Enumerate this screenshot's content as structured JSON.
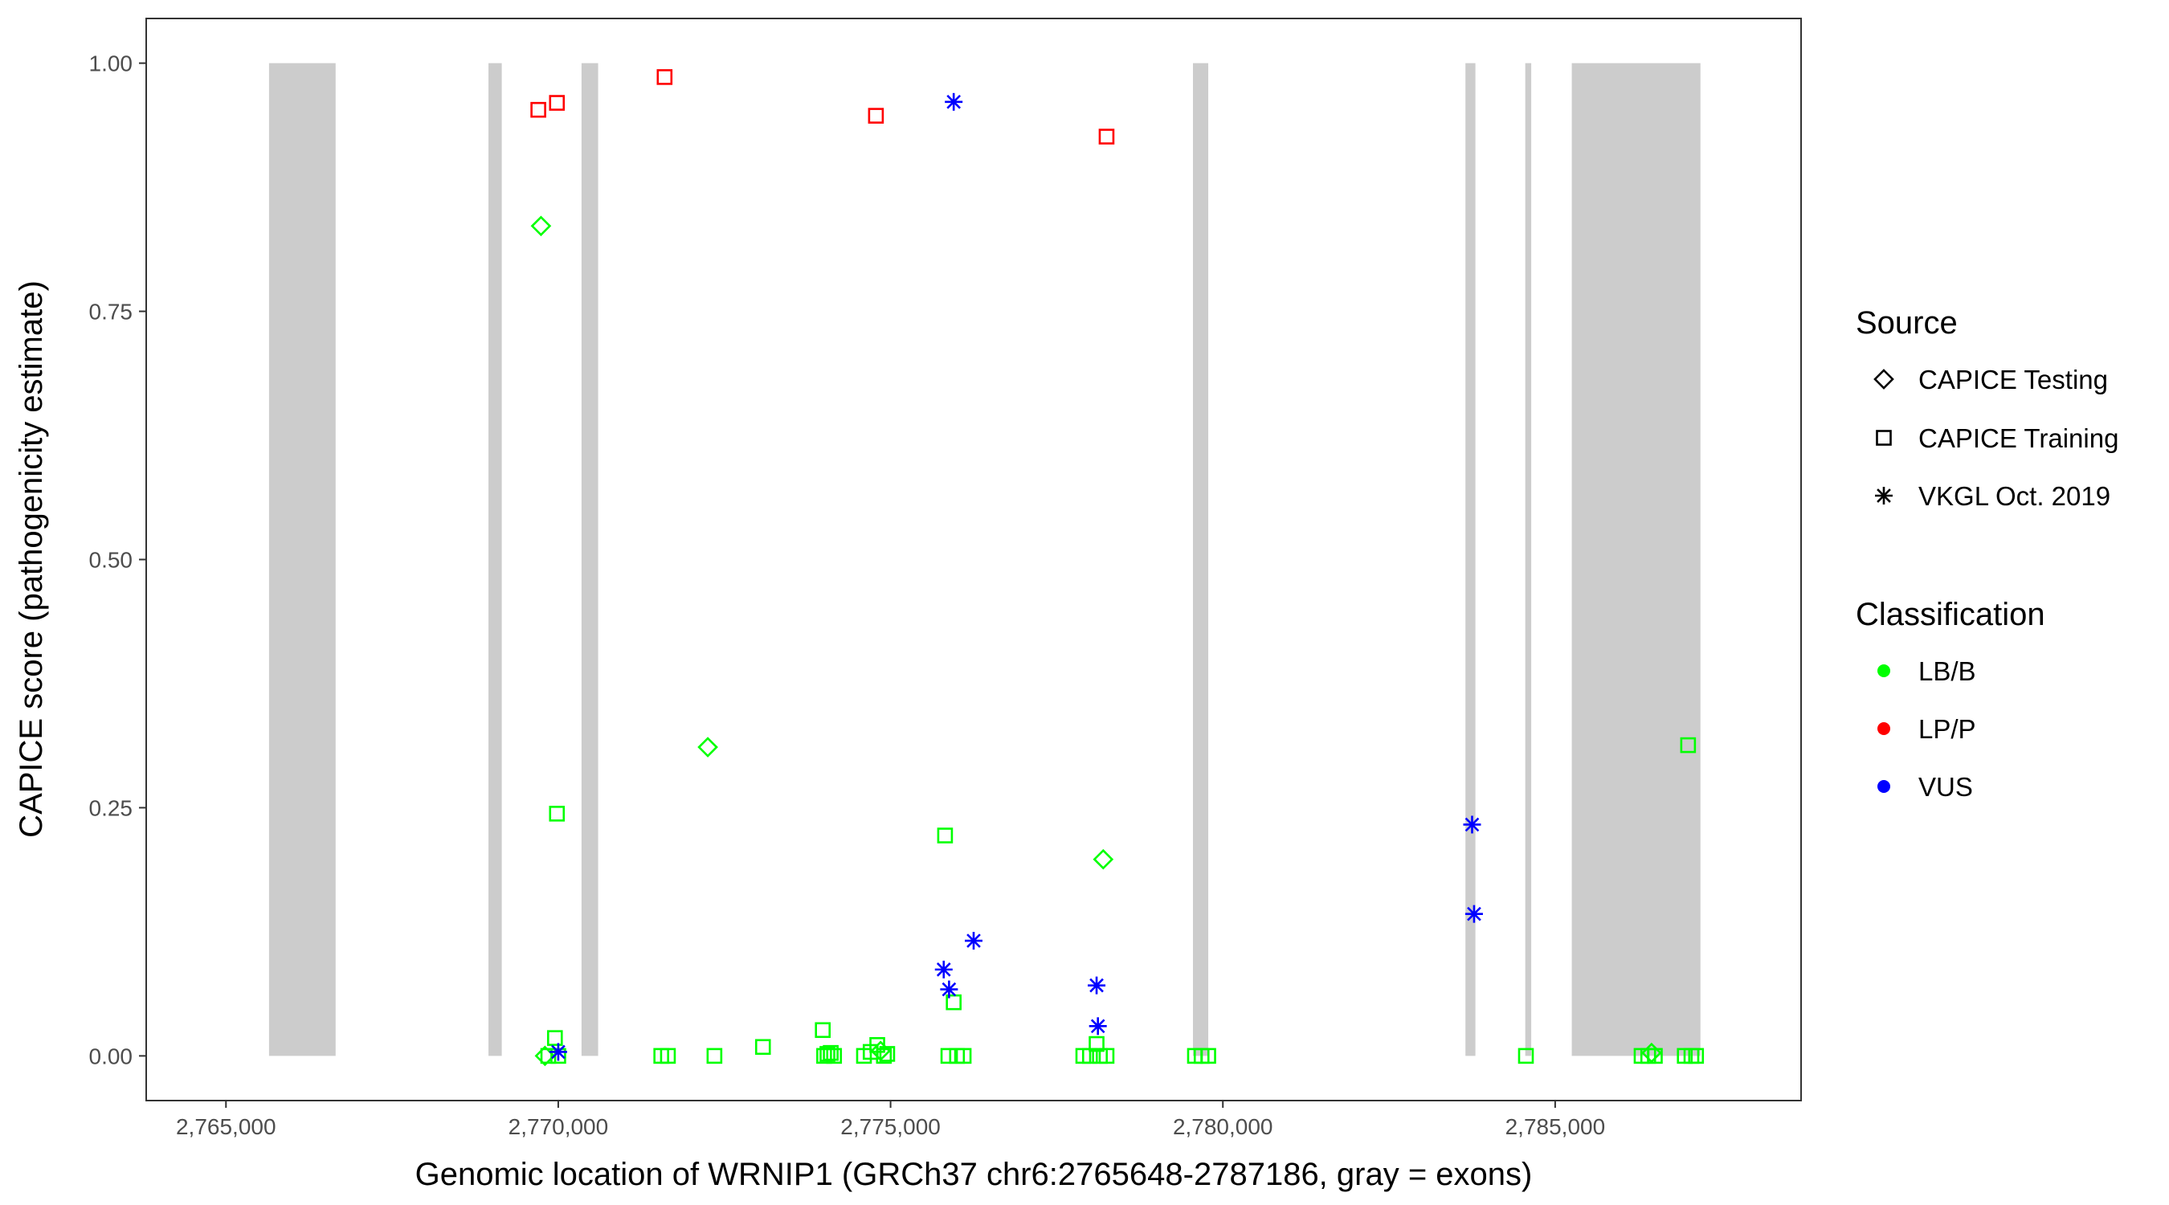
{
  "chart_data": {
    "type": "scatter",
    "title": "",
    "xlabel": "Genomic location of WRNIP1 (GRCh37 chr6:2765648-2787186, gray = exons)",
    "ylabel": "CAPICE score (pathogenicity estimate)",
    "xlim": [
      2763800,
      2788700
    ],
    "ylim": [
      -0.045,
      1.045
    ],
    "x_ticks": [
      2765000,
      2770000,
      2775000,
      2780000,
      2785000
    ],
    "x_tick_labels": [
      "2,765,000",
      "2,770,000",
      "2,775,000",
      "2,780,000",
      "2,785,000"
    ],
    "y_ticks": [
      0,
      0.25,
      0.5,
      0.75,
      1.0
    ],
    "y_tick_labels": [
      "0.00",
      "0.25",
      "0.50",
      "0.75",
      "1.00"
    ],
    "grid": false,
    "exons": [
      [
        2765648,
        2766650
      ],
      [
        2768950,
        2769150
      ],
      [
        2770350,
        2770600
      ],
      [
        2779550,
        2779780
      ],
      [
        2783650,
        2783800
      ],
      [
        2784550,
        2784640
      ],
      [
        2785250,
        2787186
      ]
    ],
    "exon_color": "#cccccc",
    "colors": {
      "LB/B": "#00ff00",
      "LP/P": "#ff0000",
      "VUS": "#0000ff"
    },
    "legend": {
      "position": "right",
      "shape_title": "Source",
      "shape_entries": [
        {
          "label": "CAPICE Testing",
          "shape": "diamond"
        },
        {
          "label": "CAPICE Training",
          "shape": "square"
        },
        {
          "label": "VKGL Oct. 2019",
          "shape": "asterisk"
        }
      ],
      "color_title": "Classification",
      "color_entries": [
        {
          "label": "LB/B",
          "color": "#00ff00"
        },
        {
          "label": "LP/P",
          "color": "#ff0000"
        },
        {
          "label": "VUS",
          "color": "#0000ff"
        }
      ]
    },
    "series": [
      {
        "classification": "LP/P",
        "source": "CAPICE Training",
        "points": [
          [
            2769700,
            0.953
          ],
          [
            2769980,
            0.96
          ],
          [
            2771600,
            0.986
          ],
          [
            2774780,
            0.947
          ],
          [
            2778250,
            0.926
          ]
        ]
      },
      {
        "classification": "LB/B",
        "source": "CAPICE Testing",
        "points": [
          [
            2769740,
            0.836
          ],
          [
            2772250,
            0.311
          ],
          [
            2778200,
            0.198
          ],
          [
            2769800,
            0.0
          ],
          [
            2774850,
            0.005
          ],
          [
            2786450,
            0.003
          ]
        ]
      },
      {
        "classification": "LB/B",
        "source": "CAPICE Training",
        "points": [
          [
            2769980,
            0.244
          ],
          [
            2769950,
            0.018
          ],
          [
            2770000,
            0.0
          ],
          [
            2769850,
            0.0
          ],
          [
            2771550,
            0.0
          ],
          [
            2771650,
            0.0
          ],
          [
            2772350,
            0.0
          ],
          [
            2773080,
            0.009
          ],
          [
            2773980,
            0.026
          ],
          [
            2774000,
            0.0
          ],
          [
            2774050,
            0.002
          ],
          [
            2774100,
            0.003
          ],
          [
            2774150,
            0.0
          ],
          [
            2774600,
            0.0
          ],
          [
            2774700,
            0.004
          ],
          [
            2774800,
            0.011
          ],
          [
            2774900,
            0.0
          ],
          [
            2774950,
            0.002
          ],
          [
            2775820,
            0.222
          ],
          [
            2775950,
            0.054
          ],
          [
            2775870,
            0.0
          ],
          [
            2776000,
            0.0
          ],
          [
            2776100,
            0.0
          ],
          [
            2777900,
            0.0
          ],
          [
            2778000,
            0.0
          ],
          [
            2778100,
            0.012
          ],
          [
            2778150,
            0.0
          ],
          [
            2778250,
            0.0
          ],
          [
            2779580,
            0.0
          ],
          [
            2779680,
            0.0
          ],
          [
            2779780,
            0.0
          ],
          [
            2784560,
            0.0
          ],
          [
            2786300,
            0.0
          ],
          [
            2786400,
            0.0
          ],
          [
            2786500,
            0.0
          ],
          [
            2786950,
            0.0
          ],
          [
            2787050,
            0.0
          ],
          [
            2787120,
            0.0
          ],
          [
            2787000,
            0.313
          ]
        ]
      },
      {
        "classification": "VUS",
        "source": "VKGL Oct. 2019",
        "points": [
          [
            2775950,
            0.961
          ],
          [
            2783750,
            0.233
          ],
          [
            2783780,
            0.143
          ],
          [
            2776250,
            0.116
          ],
          [
            2775800,
            0.087
          ],
          [
            2775880,
            0.067
          ],
          [
            2778100,
            0.071
          ],
          [
            2778120,
            0.03
          ],
          [
            2770000,
            0.004
          ]
        ]
      }
    ]
  }
}
